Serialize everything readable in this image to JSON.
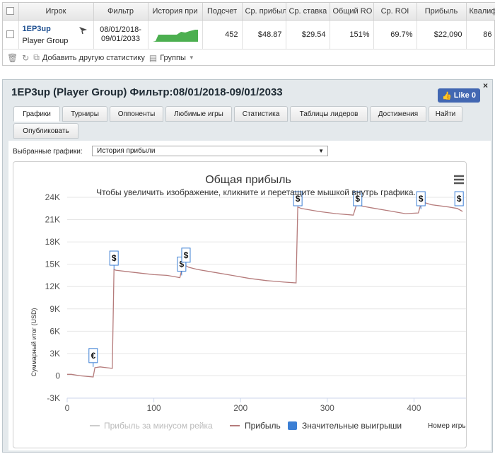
{
  "stats_table": {
    "headers": [
      "Игрок",
      "Фильтр",
      "История при",
      "Подсчет",
      "Ср. прибыль",
      "Ср. ставка",
      "Общий RO",
      "Ср. ROI",
      "Прибыль",
      "Квалиф"
    ],
    "row": {
      "player_name": "1EP3up",
      "player_group": "Player Group",
      "filter_line1": "08/01/2018-",
      "filter_line2": "09/01/2033",
      "count": "452",
      "avg_profit": "$48.87",
      "avg_stake": "$29.54",
      "total_roi": "151%",
      "avg_roi": "69.7%",
      "profit": "$22,090",
      "qualif": "86"
    },
    "toolbar": {
      "add_stats": "Добавить другую статистику",
      "groups": "Группы"
    }
  },
  "panel": {
    "title": "1EP3up (Player Group) Фильтр:08/01/2018-09/01/2033",
    "like": "Like 0",
    "close": "×",
    "tabs": [
      "Графики",
      "Турниры",
      "Оппоненты",
      "Любимые игры",
      "Статистика",
      "Таблицы лидеров",
      "Достижения",
      "Найти",
      "Опубликовать"
    ],
    "selector_label": "Выбранные графики:",
    "selector_value": "История прибыли"
  },
  "chart_data": {
    "type": "line",
    "title": "Общая прибыль",
    "subtitle": "Чтобы увеличить изображение, кликните и перетащите мышкой внутрь графика.",
    "xlabel": "Номер игры",
    "ylabel": "Суммарный итог (USD)",
    "xlim": [
      0,
      460
    ],
    "ylim": [
      -3000,
      24000
    ],
    "x_ticks": [
      0,
      100,
      200,
      300,
      400
    ],
    "x_tick_labels": [
      "0",
      "100",
      "200",
      "300",
      "400"
    ],
    "y_ticks": [
      -3000,
      0,
      3000,
      6000,
      9000,
      12000,
      15000,
      18000,
      21000,
      24000
    ],
    "y_tick_labels": [
      "-3K",
      "0",
      "3K",
      "6K",
      "9K",
      "12K",
      "15K",
      "18K",
      "21K",
      "24K"
    ],
    "legend": [
      "Прибыль за минусом рейка",
      "Прибыль",
      "Значительные выигрыши"
    ],
    "legend_position": "bottom",
    "colors": {
      "profit": "#b57b7b",
      "rake": "#cccccc",
      "wins": "#3c7fd4"
    },
    "series": [
      {
        "name": "Прибыль",
        "x": [
          0,
          5,
          15,
          25,
          30,
          32,
          38,
          45,
          52,
          54,
          56,
          70,
          85,
          100,
          115,
          125,
          130,
          133,
          135,
          137,
          140,
          150,
          170,
          190,
          210,
          230,
          250,
          264,
          266,
          270,
          290,
          310,
          330,
          335,
          337,
          350,
          370,
          390,
          405,
          408,
          412,
          420,
          440,
          450,
          456
        ],
        "y": [
          200,
          200,
          0,
          -100,
          -150,
          1100,
          1200,
          1100,
          1000,
          14300,
          14200,
          14000,
          13800,
          13600,
          13500,
          13300,
          13200,
          14700,
          14500,
          14800,
          14600,
          14300,
          13900,
          13500,
          13100,
          12800,
          12600,
          12500,
          22700,
          22500,
          22100,
          21800,
          21600,
          23500,
          22900,
          22600,
          22200,
          21800,
          21900,
          23100,
          23300,
          23000,
          22700,
          22500,
          22100
        ]
      }
    ],
    "big_wins": [
      {
        "x": 30,
        "y": 1200,
        "symbol": "€"
      },
      {
        "x": 54,
        "y": 14300,
        "symbol": "$"
      },
      {
        "x": 132,
        "y": 13500,
        "symbol": "$"
      },
      {
        "x": 137,
        "y": 14700,
        "symbol": "$"
      },
      {
        "x": 266,
        "y": 23600,
        "symbol": "$"
      },
      {
        "x": 335,
        "y": 23600,
        "symbol": "$"
      },
      {
        "x": 408,
        "y": 22400,
        "symbol": "$"
      },
      {
        "x": 452,
        "y": 23200,
        "symbol": "$"
      }
    ]
  }
}
